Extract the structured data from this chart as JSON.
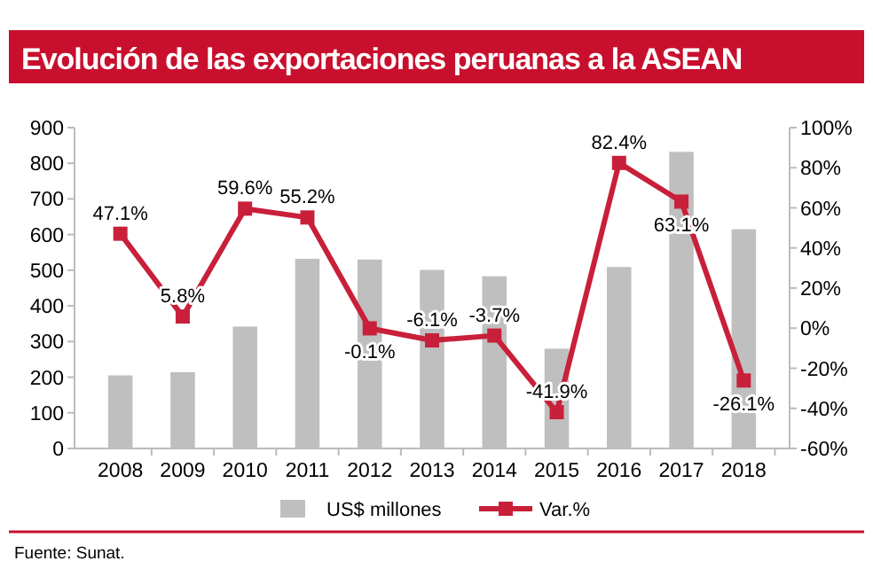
{
  "chart_data": {
    "type": "bar",
    "title": "Evolución de las exportaciones peruanas a la ASEAN",
    "categories": [
      "2008",
      "2009",
      "2010",
      "2011",
      "2012",
      "2013",
      "2014",
      "2015",
      "2016",
      "2017",
      "2018"
    ],
    "series": [
      {
        "name": "US$ millones",
        "color": "#bfbfbf",
        "values": [
          205,
          214,
          342,
          532,
          530,
          501,
          483,
          280,
          509,
          832,
          615
        ]
      },
      {
        "name": "Var.%",
        "type": "line",
        "axis": "y2",
        "color": "#c8203a",
        "marker": "square",
        "values": [
          47.1,
          5.8,
          59.6,
          55.2,
          -0.1,
          -6.1,
          -3.7,
          -41.9,
          82.4,
          63.1,
          -26.1
        ],
        "value_labels": [
          "47.1%",
          "5.8%",
          "59.6%",
          "55.2%",
          "-0.1%",
          "-6.1%",
          "-3.7%",
          "-41.9%",
          "82.4%",
          "63.1%",
          "-26.1%"
        ]
      }
    ],
    "ylim": [
      0,
      900
    ],
    "yticks": [
      0,
      100,
      200,
      300,
      400,
      500,
      600,
      700,
      800,
      900
    ],
    "y2lim": [
      -60,
      100
    ],
    "y2ticks": [
      {
        "value": -60,
        "label": "-60%"
      },
      {
        "value": -40,
        "label": "-40%"
      },
      {
        "value": -20,
        "label": "-20%"
      },
      {
        "value": 0,
        "label": "0%"
      },
      {
        "value": 20,
        "label": "20%"
      },
      {
        "value": 40,
        "label": "40%"
      },
      {
        "value": 60,
        "label": "60%"
      },
      {
        "value": 80,
        "label": "80%"
      },
      {
        "value": 100,
        "label": "100%"
      }
    ],
    "legend": "bottom",
    "grid": false,
    "annotations": [
      "Fuente: Sunat."
    ]
  }
}
